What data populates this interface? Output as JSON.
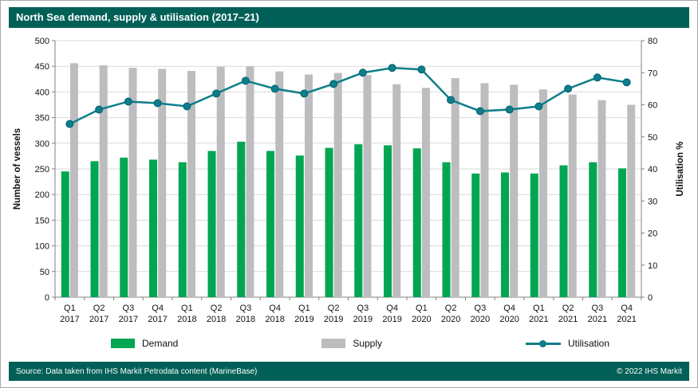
{
  "title": "North Sea demand, supply & utilisation (2017–21)",
  "theme": {
    "bar_color": "#006057",
    "demand_color": "#00A651",
    "supply_color": "#BDBDBF",
    "utilisation_color": "#0D7E8A",
    "grid_color": "#D9D9D9",
    "axis_color": "#808080"
  },
  "footer": {
    "source": "Source: Data taken from IHS Markit Petrodata content (MarineBase)",
    "copyright": "© 2022 IHS Markit"
  },
  "chart_data": {
    "type": "bar",
    "subtype": "grouped-bars-with-line",
    "title": "North Sea demand, supply & utilisation (2017–21)",
    "categories": [
      "Q1 2017",
      "Q2 2017",
      "Q3 2017",
      "Q4 2017",
      "Q1 2018",
      "Q2 2018",
      "Q3 2018",
      "Q4 2018",
      "Q1 2019",
      "Q2 2019",
      "Q3 2019",
      "Q4 2019",
      "Q1 2020",
      "Q2 2020",
      "Q3 2020",
      "Q4 2020",
      "Q1 2021",
      "Q2 2021",
      "Q3 2021",
      "Q4 2021"
    ],
    "series": [
      {
        "name": "Demand",
        "type": "bar",
        "axis": "left",
        "color": "#00A651",
        "values": [
          245,
          265,
          272,
          268,
          263,
          285,
          303,
          285,
          276,
          291,
          298,
          296,
          290,
          263,
          241,
          243,
          241,
          257,
          263,
          251
        ]
      },
      {
        "name": "Supply",
        "type": "bar",
        "axis": "left",
        "color": "#BDBDBF",
        "values": [
          456,
          452,
          447,
          445,
          441,
          449,
          450,
          440,
          434,
          437,
          433,
          415,
          408,
          427,
          417,
          414,
          405,
          395,
          384,
          375
        ]
      },
      {
        "name": "Utilisation",
        "type": "line",
        "axis": "right",
        "color": "#0D7E8A",
        "values": [
          54,
          58.5,
          61,
          60.5,
          59.5,
          63.5,
          67.5,
          65,
          63.5,
          66.5,
          70,
          71.5,
          71,
          61.5,
          58,
          58.5,
          59.5,
          65,
          68.5,
          67
        ]
      }
    ],
    "left_axis": {
      "label": "Number of vessels",
      "min": 0,
      "max": 500,
      "step": 50
    },
    "right_axis": {
      "label": "Utilisation %",
      "min": 0,
      "max": 80,
      "step": 10
    },
    "grid": true,
    "legend_position": "bottom"
  }
}
